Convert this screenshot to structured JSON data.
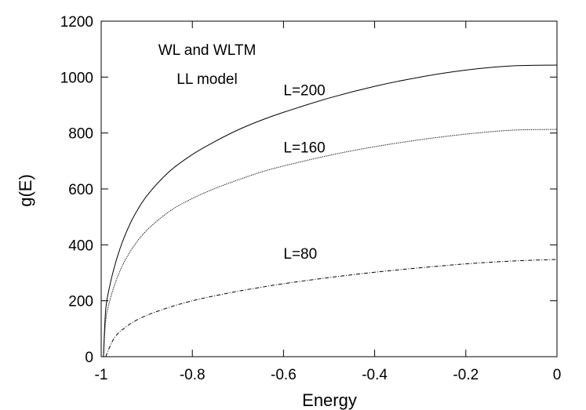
{
  "chart_data": {
    "type": "line",
    "title": "",
    "xlabel": "Energy",
    "ylabel": "g(E)",
    "xlim": [
      -1,
      0
    ],
    "ylim": [
      0,
      1200
    ],
    "xticks": [
      -1,
      -0.8,
      -0.6,
      -0.4,
      -0.2,
      0
    ],
    "xtick_labels": [
      "-1",
      "-0.8",
      "-0.6",
      "-0.4",
      "-0.2",
      "0"
    ],
    "yticks": [
      0,
      200,
      400,
      600,
      800,
      1000,
      1200
    ],
    "ytick_labels": [
      "0",
      "200",
      "400",
      "600",
      "800",
      "1000",
      "1200"
    ],
    "grid": false,
    "legend": "none",
    "annotations": [
      "WL and WLTM",
      "LL model"
    ],
    "series": [
      {
        "name": "L=200",
        "line_style": "solid",
        "label_at": [
          -0.6,
          935
        ],
        "x": [
          -0.995,
          -0.99,
          -0.98,
          -0.97,
          -0.96,
          -0.95,
          -0.93,
          -0.9,
          -0.85,
          -0.8,
          -0.75,
          -0.7,
          -0.65,
          -0.6,
          -0.5,
          -0.4,
          -0.3,
          -0.2,
          -0.1,
          0.0
        ],
        "y": [
          0,
          170,
          262,
          327,
          380,
          425,
          497,
          575,
          663,
          723,
          770,
          811,
          845,
          874,
          925,
          967,
          1000,
          1025,
          1040,
          1043
        ]
      },
      {
        "name": "L=160",
        "line_style": "dotted",
        "label_at": [
          -0.6,
          730
        ],
        "x": [
          -0.995,
          -0.99,
          -0.98,
          -0.97,
          -0.96,
          -0.95,
          -0.93,
          -0.9,
          -0.85,
          -0.8,
          -0.75,
          -0.7,
          -0.65,
          -0.6,
          -0.5,
          -0.4,
          -0.3,
          -0.2,
          -0.1,
          0.0
        ],
        "y": [
          0,
          130,
          207,
          260,
          302,
          337,
          392,
          452,
          520,
          566,
          602,
          632,
          660,
          682,
          720,
          751,
          776,
          796,
          810,
          813
        ]
      },
      {
        "name": "L=80",
        "line_style": "dash-dot",
        "label_at": [
          -0.6,
          350
        ],
        "x": [
          -0.99,
          -0.98,
          -0.97,
          -0.96,
          -0.95,
          -0.93,
          -0.9,
          -0.85,
          -0.8,
          -0.75,
          -0.7,
          -0.65,
          -0.6,
          -0.5,
          -0.4,
          -0.3,
          -0.2,
          -0.1,
          0.0
        ],
        "y": [
          0,
          40,
          70,
          88,
          101,
          124,
          148,
          177,
          200,
          218,
          234,
          248,
          261,
          283,
          302,
          318,
          332,
          342,
          348
        ]
      }
    ]
  }
}
